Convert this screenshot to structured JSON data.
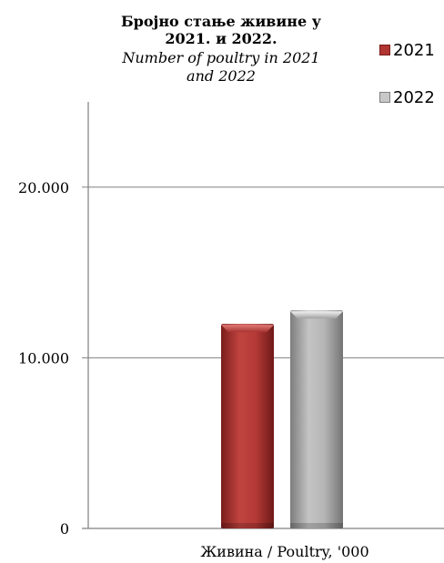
{
  "chart_data": {
    "type": "bar",
    "title": "Бројно стање живине у 2021. и 2022.",
    "subtitle": "Number of poultry in 2021 and 2022",
    "categories": [
      "Живина / Poultry, '000"
    ],
    "series": [
      {
        "name": "2021",
        "values": [
          11990
        ],
        "color": "#b03533"
      },
      {
        "name": "2022",
        "values": [
          12780
        ],
        "color": "#a6a6a6"
      }
    ],
    "ylim": [
      0,
      25000
    ],
    "yticks": [
      0,
      10000,
      20000
    ],
    "ytick_labels": [
      "0",
      "10.000",
      "20.000"
    ],
    "grid": true,
    "legend": "top-right"
  }
}
